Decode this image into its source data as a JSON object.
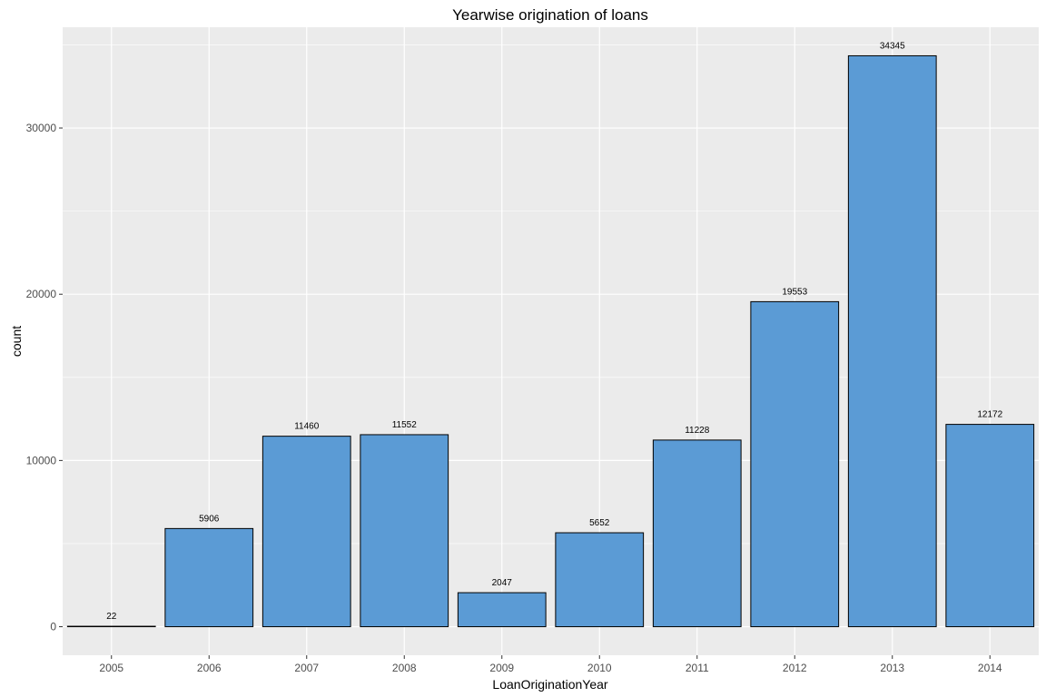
{
  "chart_data": {
    "type": "bar",
    "title": "Yearwise origination of loans",
    "xlabel": "LoanOriginationYear",
    "ylabel": "count",
    "categories": [
      "2005",
      "2006",
      "2007",
      "2008",
      "2009",
      "2010",
      "2011",
      "2012",
      "2013",
      "2014"
    ],
    "values": [
      22,
      5906,
      11460,
      11552,
      2047,
      5652,
      11228,
      19553,
      34345,
      12172
    ],
    "yticks": [
      0,
      10000,
      20000,
      30000
    ],
    "ytick_labels": [
      "0",
      "10000",
      "20000",
      "30000"
    ],
    "ylim": [
      -1717,
      36062
    ],
    "grid": true,
    "legend": "none",
    "colors": {
      "bar_fill": "#5b9bd5",
      "bar_stroke": "#000000",
      "panel_background": "#ebebeb",
      "grid_line": "#ffffff"
    }
  }
}
